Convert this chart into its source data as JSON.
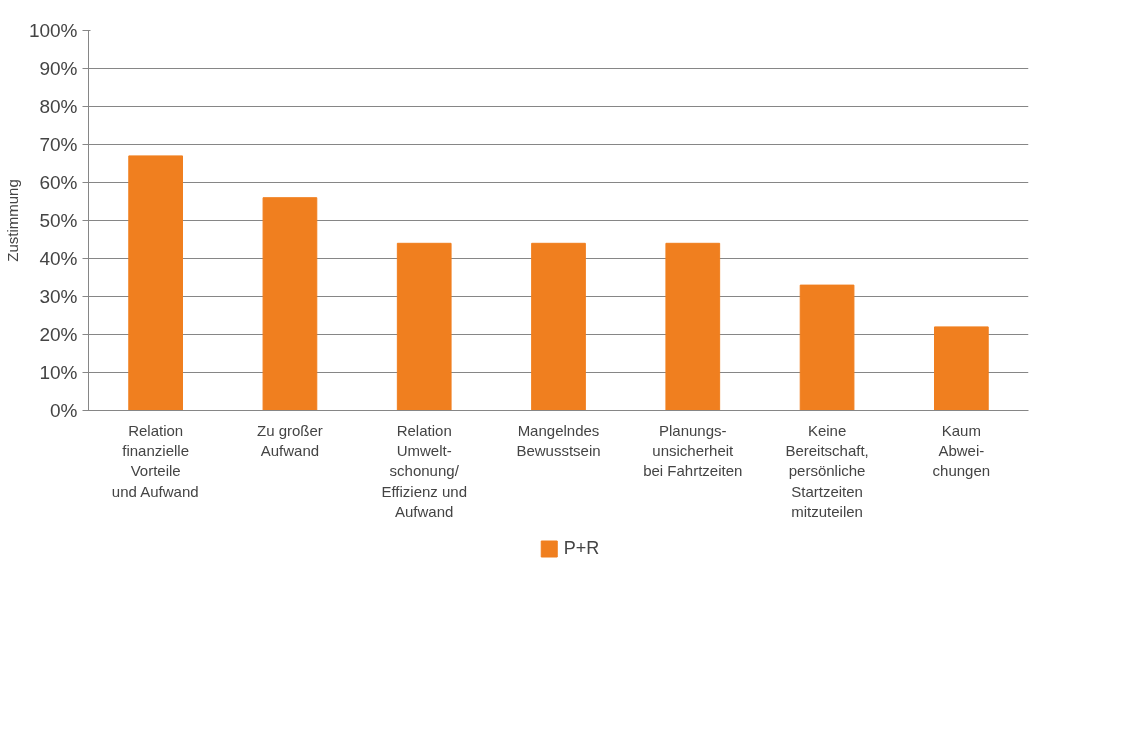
{
  "chart_data": {
    "type": "bar",
    "ylabel": "Zustimmung",
    "categories": [
      "Relation\nfinanzielle\nVorteile\nund Aufwand",
      "Zu großer\nAufwand",
      "Relation\nUmwelt-\nschonung/\nEffizienz und\nAufwand",
      "Mangelndes\nBewusstsein",
      "Planungs-\nunsicherheit\nbei Fahrtzeiten",
      "Keine\nBereitschaft,\npersönliche\nStartzeiten\nmitzuteilen",
      "Kaum\nAbwei-\nchungen"
    ],
    "series": [
      {
        "name": "P+R",
        "color": "#f07f1f",
        "values": [
          67,
          56,
          44,
          44,
          44,
          33,
          22
        ]
      }
    ],
    "ylim": [
      0,
      100
    ],
    "yticks": [
      {
        "value": 0,
        "label": "0%"
      },
      {
        "value": 10,
        "label": "10%"
      },
      {
        "value": 20,
        "label": "20%"
      },
      {
        "value": 30,
        "label": "30%"
      },
      {
        "value": 40,
        "label": "40%"
      },
      {
        "value": 50,
        "label": "50%"
      },
      {
        "value": 60,
        "label": "60%"
      },
      {
        "value": 70,
        "label": "70%"
      },
      {
        "value": 80,
        "label": "80%"
      },
      {
        "value": 90,
        "label": "90%"
      },
      {
        "value": 100,
        "label": "100%"
      }
    ],
    "grid": "y",
    "legend": "bottom"
  }
}
